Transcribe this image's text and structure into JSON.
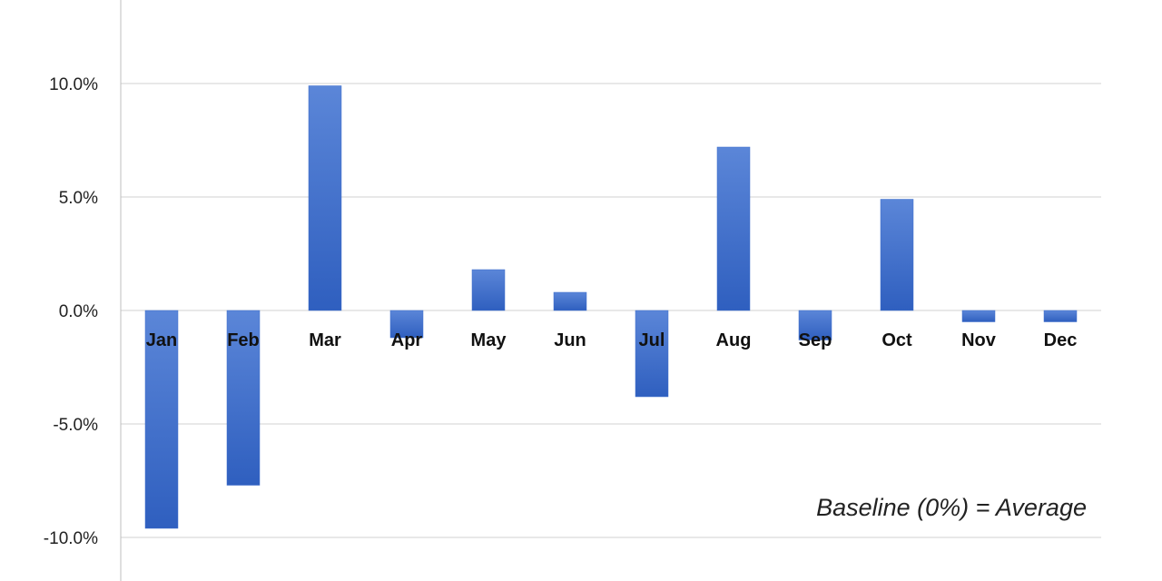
{
  "chart_data": {
    "type": "bar",
    "title": "",
    "xlabel": "",
    "ylabel": "",
    "categories": [
      "Jan",
      "Feb",
      "Mar",
      "Apr",
      "May",
      "Jun",
      "Jul",
      "Aug",
      "Sep",
      "Oct",
      "Nov",
      "Dec"
    ],
    "values": [
      -9.6,
      -7.7,
      9.9,
      -1.2,
      1.8,
      0.8,
      -3.8,
      7.2,
      -1.3,
      4.9,
      -0.5,
      -0.5
    ],
    "ylim": [
      -12,
      13
    ],
    "yticks": [
      -10,
      -5,
      0,
      5,
      10
    ],
    "ytick_labels": [
      "-10.0%",
      "-5.0%",
      "0.0%",
      "5.0%",
      "10.0%"
    ],
    "grid": true,
    "legend": "none",
    "bar_color": "#3F6FCC",
    "annotation": "Baseline (0%) = Average"
  }
}
